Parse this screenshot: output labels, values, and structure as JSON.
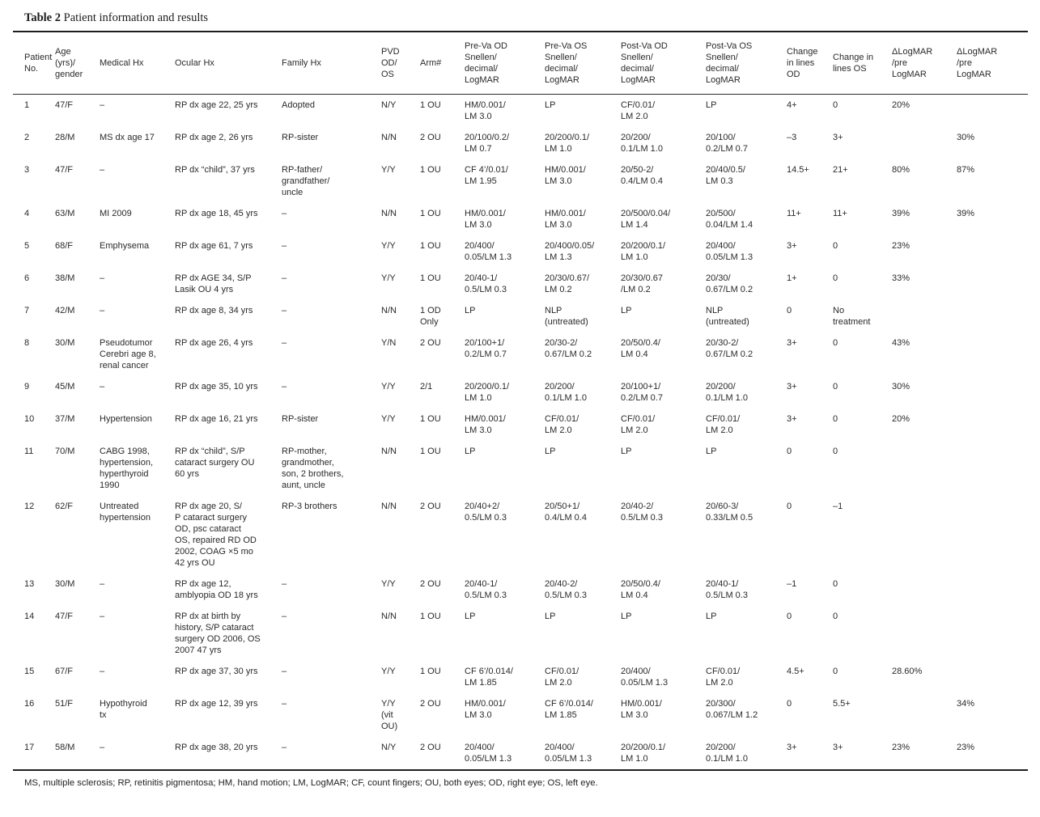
{
  "title": {
    "label": "Table 2",
    "text": " Patient information and results"
  },
  "columns": [
    {
      "key": "patient_no",
      "label": "Patient\nNo."
    },
    {
      "key": "age_gender",
      "label": "Age\n(yrs)/\ngender"
    },
    {
      "key": "medical_hx",
      "label": "Medical Hx"
    },
    {
      "key": "ocular_hx",
      "label": "Ocular Hx"
    },
    {
      "key": "family_hx",
      "label": "Family Hx"
    },
    {
      "key": "pvd_od_os",
      "label": "PVD\nOD/\nOS"
    },
    {
      "key": "arm",
      "label": "Arm#"
    },
    {
      "key": "pre_va_od",
      "label": "Pre-Va OD\nSnellen/\ndecimal/\nLogMAR"
    },
    {
      "key": "pre_va_os",
      "label": "Pre-Va OS\nSnellen/\ndecimal/\nLogMAR"
    },
    {
      "key": "post_va_od",
      "label": "Post-Va OD\nSnellen/\ndecimal/\nLogMAR"
    },
    {
      "key": "post_va_os",
      "label": "Post-Va OS\nSnellen/\ndecimal/\nLogMAR"
    },
    {
      "key": "change_lines_od",
      "label": "Change\nin lines\nOD"
    },
    {
      "key": "change_lines_os",
      "label": "Change in\nlines OS"
    },
    {
      "key": "dlogmar_pre_1",
      "label": "ΔLogMAR\n/pre\nLogMAR"
    },
    {
      "key": "dlogmar_pre_2",
      "label": "ΔLogMAR\n/pre\nLogMAR"
    }
  ],
  "rows": [
    {
      "patient_no": "1",
      "age_gender": "47/F",
      "medical_hx": "–",
      "ocular_hx": "RP dx age 22, 25 yrs",
      "family_hx": "Adopted",
      "pvd_od_os": "N/Y",
      "arm": "1 OU",
      "pre_va_od": "HM/0.001/\nLM 3.0",
      "pre_va_os": "LP",
      "post_va_od": "CF/0.01/\nLM 2.0",
      "post_va_os": "LP",
      "change_lines_od": "4+",
      "change_lines_os": "0",
      "dlogmar_pre_1": "20%",
      "dlogmar_pre_2": ""
    },
    {
      "patient_no": "2",
      "age_gender": "28/M",
      "medical_hx": "MS dx age 17",
      "ocular_hx": "RP dx age 2, 26 yrs",
      "family_hx": "RP-sister",
      "pvd_od_os": "N/N",
      "arm": "2 OU",
      "pre_va_od": "20/100/0.2/\nLM 0.7",
      "pre_va_os": "20/200/0.1/\nLM 1.0",
      "post_va_od": "20/200/\n0.1/LM 1.0",
      "post_va_os": "20/100/\n0.2/LM 0.7",
      "change_lines_od": "–3",
      "change_lines_os": "3+",
      "dlogmar_pre_1": "",
      "dlogmar_pre_2": "30%"
    },
    {
      "patient_no": "3",
      "age_gender": "47/F",
      "medical_hx": "–",
      "ocular_hx": "RP dx “child”, 37 yrs",
      "family_hx": "RP-father/\ngrandfather/\nuncle",
      "pvd_od_os": "Y/Y",
      "arm": "1 OU",
      "pre_va_od": "CF 4’/0.01/\nLM 1.95",
      "pre_va_os": "HM/0.001/\nLM 3.0",
      "post_va_od": "20/50-2/\n0.4/LM 0.4",
      "post_va_os": "20/40/0.5/\nLM 0.3",
      "change_lines_od": "14.5+",
      "change_lines_os": "21+",
      "dlogmar_pre_1": "80%",
      "dlogmar_pre_2": "87%"
    },
    {
      "patient_no": "4",
      "age_gender": "63/M",
      "medical_hx": "MI 2009",
      "ocular_hx": "RP dx age 18, 45 yrs",
      "family_hx": "–",
      "pvd_od_os": "N/N",
      "arm": "1 OU",
      "pre_va_od": "HM/0.001/\nLM 3.0",
      "pre_va_os": "HM/0.001/\nLM 3.0",
      "post_va_od": "20/500/0.04/\nLM 1.4",
      "post_va_os": "20/500/\n0.04/LM 1.4",
      "change_lines_od": "11+",
      "change_lines_os": "11+",
      "dlogmar_pre_1": "39%",
      "dlogmar_pre_2": "39%"
    },
    {
      "patient_no": "5",
      "age_gender": "68/F",
      "medical_hx": "Emphysema",
      "ocular_hx": "RP dx age 61, 7 yrs",
      "family_hx": "–",
      "pvd_od_os": "Y/Y",
      "arm": "1 OU",
      "pre_va_od": "20/400/\n0.05/LM 1.3",
      "pre_va_os": "20/400/0.05/\nLM 1.3",
      "post_va_od": "20/200/0.1/\nLM 1.0",
      "post_va_os": "20/400/\n0.05/LM 1.3",
      "change_lines_od": "3+",
      "change_lines_os": "0",
      "dlogmar_pre_1": "23%",
      "dlogmar_pre_2": ""
    },
    {
      "patient_no": "6",
      "age_gender": "38/M",
      "medical_hx": "–",
      "ocular_hx": "RP dx AGE 34, S/P\nLasik OU 4 yrs",
      "family_hx": "–",
      "pvd_od_os": "Y/Y",
      "arm": "1 OU",
      "pre_va_od": "20/40-1/\n0.5/LM 0.3",
      "pre_va_os": "20/30/0.67/\nLM 0.2",
      "post_va_od": "20/30/0.67\n/LM 0.2",
      "post_va_os": "20/30/\n0.67/LM 0.2",
      "change_lines_od": "1+",
      "change_lines_os": "0",
      "dlogmar_pre_1": "33%",
      "dlogmar_pre_2": ""
    },
    {
      "patient_no": "7",
      "age_gender": "42/M",
      "medical_hx": "–",
      "ocular_hx": "RP dx age 8, 34 yrs",
      "family_hx": "–",
      "pvd_od_os": "N/N",
      "arm": "1 OD\nOnly",
      "pre_va_od": "LP",
      "pre_va_os": "NLP\n(untreated)",
      "post_va_od": "LP",
      "post_va_os": "NLP\n(untreated)",
      "change_lines_od": "0",
      "change_lines_os": "No\ntreatment",
      "dlogmar_pre_1": "",
      "dlogmar_pre_2": ""
    },
    {
      "patient_no": "8",
      "age_gender": "30/M",
      "medical_hx": "Pseudotumor\nCerebri age 8,\nrenal cancer",
      "ocular_hx": "RP dx age 26, 4 yrs",
      "family_hx": "–",
      "pvd_od_os": "Y/N",
      "arm": "2 OU",
      "pre_va_od": "20/100+1/\n0.2/LM 0.7",
      "pre_va_os": "20/30-2/\n0.67/LM 0.2",
      "post_va_od": "20/50/0.4/\nLM 0.4",
      "post_va_os": "20/30-2/\n0.67/LM 0.2",
      "change_lines_od": "3+",
      "change_lines_os": "0",
      "dlogmar_pre_1": "43%",
      "dlogmar_pre_2": ""
    },
    {
      "patient_no": "9",
      "age_gender": "45/M",
      "medical_hx": "–",
      "ocular_hx": "RP dx age 35, 10 yrs",
      "family_hx": "–",
      "pvd_od_os": "Y/Y",
      "arm": "2/1",
      "pre_va_od": "20/200/0.1/\nLM 1.0",
      "pre_va_os": "20/200/\n0.1/LM 1.0",
      "post_va_od": "20/100+1/\n0.2/LM 0.7",
      "post_va_os": "20/200/\n0.1/LM 1.0",
      "change_lines_od": "3+",
      "change_lines_os": "0",
      "dlogmar_pre_1": "30%",
      "dlogmar_pre_2": ""
    },
    {
      "patient_no": "10",
      "age_gender": "37/M",
      "medical_hx": "Hypertension",
      "ocular_hx": "RP dx age 16, 21 yrs",
      "family_hx": "RP-sister",
      "pvd_od_os": "Y/Y",
      "arm": "1 OU",
      "pre_va_od": "HM/0.001/\nLM 3.0",
      "pre_va_os": "CF/0.01/\nLM 2.0",
      "post_va_od": "CF/0.01/\nLM 2.0",
      "post_va_os": "CF/0.01/\nLM 2.0",
      "change_lines_od": "3+",
      "change_lines_os": "0",
      "dlogmar_pre_1": "20%",
      "dlogmar_pre_2": ""
    },
    {
      "patient_no": "11",
      "age_gender": "70/M",
      "medical_hx": "CABG 1998,\nhypertension,\nhyperthyroid\n1990",
      "ocular_hx": "RP dx “child”, S/P\ncataract surgery OU\n60 yrs",
      "family_hx": "RP-mother,\ngrandmother,\nson, 2 brothers,\naunt, uncle",
      "pvd_od_os": "N/N",
      "arm": "1 OU",
      "pre_va_od": "LP",
      "pre_va_os": "LP",
      "post_va_od": "LP",
      "post_va_os": "LP",
      "change_lines_od": "0",
      "change_lines_os": "0",
      "dlogmar_pre_1": "",
      "dlogmar_pre_2": ""
    },
    {
      "patient_no": "12",
      "age_gender": "62/F",
      "medical_hx": "Untreated\nhypertension",
      "ocular_hx": "RP dx age 20, S/\nP cataract surgery\nOD, psc cataract\nOS, repaired RD OD\n2002, COAG ×5 mo\n42 yrs OU",
      "family_hx": "RP-3 brothers",
      "pvd_od_os": "N/N",
      "arm": "2 OU",
      "pre_va_od": "20/40+2/\n0.5/LM 0.3",
      "pre_va_os": "20/50+1/\n0.4/LM 0.4",
      "post_va_od": "20/40-2/\n0.5/LM 0.3",
      "post_va_os": "20/60-3/\n0.33/LM 0.5",
      "change_lines_od": "0",
      "change_lines_os": "–1",
      "dlogmar_pre_1": "",
      "dlogmar_pre_2": ""
    },
    {
      "patient_no": "13",
      "age_gender": "30/M",
      "medical_hx": "–",
      "ocular_hx": "RP dx age 12,\namblyopia OD 18 yrs",
      "family_hx": "–",
      "pvd_od_os": "Y/Y",
      "arm": "2 OU",
      "pre_va_od": "20/40-1/\n0.5/LM 0.3",
      "pre_va_os": "20/40-2/\n0.5/LM 0.3",
      "post_va_od": "20/50/0.4/\nLM 0.4",
      "post_va_os": "20/40-1/\n0.5/LM 0.3",
      "change_lines_od": "–1",
      "change_lines_os": "0",
      "dlogmar_pre_1": "",
      "dlogmar_pre_2": ""
    },
    {
      "patient_no": "14",
      "age_gender": "47/F",
      "medical_hx": "–",
      "ocular_hx": "RP dx at birth by\nhistory, S/P cataract\nsurgery OD 2006, OS\n2007 47 yrs",
      "family_hx": "–",
      "pvd_od_os": "N/N",
      "arm": "1 OU",
      "pre_va_od": "LP",
      "pre_va_os": "LP",
      "post_va_od": "LP",
      "post_va_os": "LP",
      "change_lines_od": "0",
      "change_lines_os": "0",
      "dlogmar_pre_1": "",
      "dlogmar_pre_2": ""
    },
    {
      "patient_no": "15",
      "age_gender": "67/F",
      "medical_hx": "–",
      "ocular_hx": "RP dx age 37, 30 yrs",
      "family_hx": "–",
      "pvd_od_os": "Y/Y",
      "arm": "1 OU",
      "pre_va_od": "CF 6’/0.014/\nLM 1.85",
      "pre_va_os": "CF/0.01/\nLM 2.0",
      "post_va_od": "20/400/\n0.05/LM 1.3",
      "post_va_os": "CF/0.01/\nLM 2.0",
      "change_lines_od": "4.5+",
      "change_lines_os": "0",
      "dlogmar_pre_1": "28.60%",
      "dlogmar_pre_2": ""
    },
    {
      "patient_no": "16",
      "age_gender": "51/F",
      "medical_hx": "Hypothyroid\ntx",
      "ocular_hx": "RP dx age 12, 39 yrs",
      "family_hx": "–",
      "pvd_od_os": "Y/Y\n(vit\nOU)",
      "arm": "2 OU",
      "pre_va_od": "HM/0.001/\nLM 3.0",
      "pre_va_os": "CF 6’/0.014/\nLM 1.85",
      "post_va_od": "HM/0.001/\nLM 3.0",
      "post_va_os": "20/300/\n0.067/LM 1.2",
      "change_lines_od": "0",
      "change_lines_os": "5.5+",
      "dlogmar_pre_1": "",
      "dlogmar_pre_2": "34%"
    },
    {
      "patient_no": "17",
      "age_gender": "58/M",
      "medical_hx": "–",
      "ocular_hx": "RP dx age 38, 20 yrs",
      "family_hx": "–",
      "pvd_od_os": "N/Y",
      "arm": "2 OU",
      "pre_va_od": "20/400/\n0.05/LM 1.3",
      "pre_va_os": "20/400/\n0.05/LM 1.3",
      "post_va_od": "20/200/0.1/\nLM 1.0",
      "post_va_os": "20/200/\n0.1/LM 1.0",
      "change_lines_od": "3+",
      "change_lines_os": "3+",
      "dlogmar_pre_1": "23%",
      "dlogmar_pre_2": "23%"
    }
  ],
  "footnote": "MS, multiple sclerosis; RP, retinitis pigmentosa; HM, hand motion; LM, LogMAR; CF, count fingers; OU, both eyes; OD, right eye; OS, left eye."
}
